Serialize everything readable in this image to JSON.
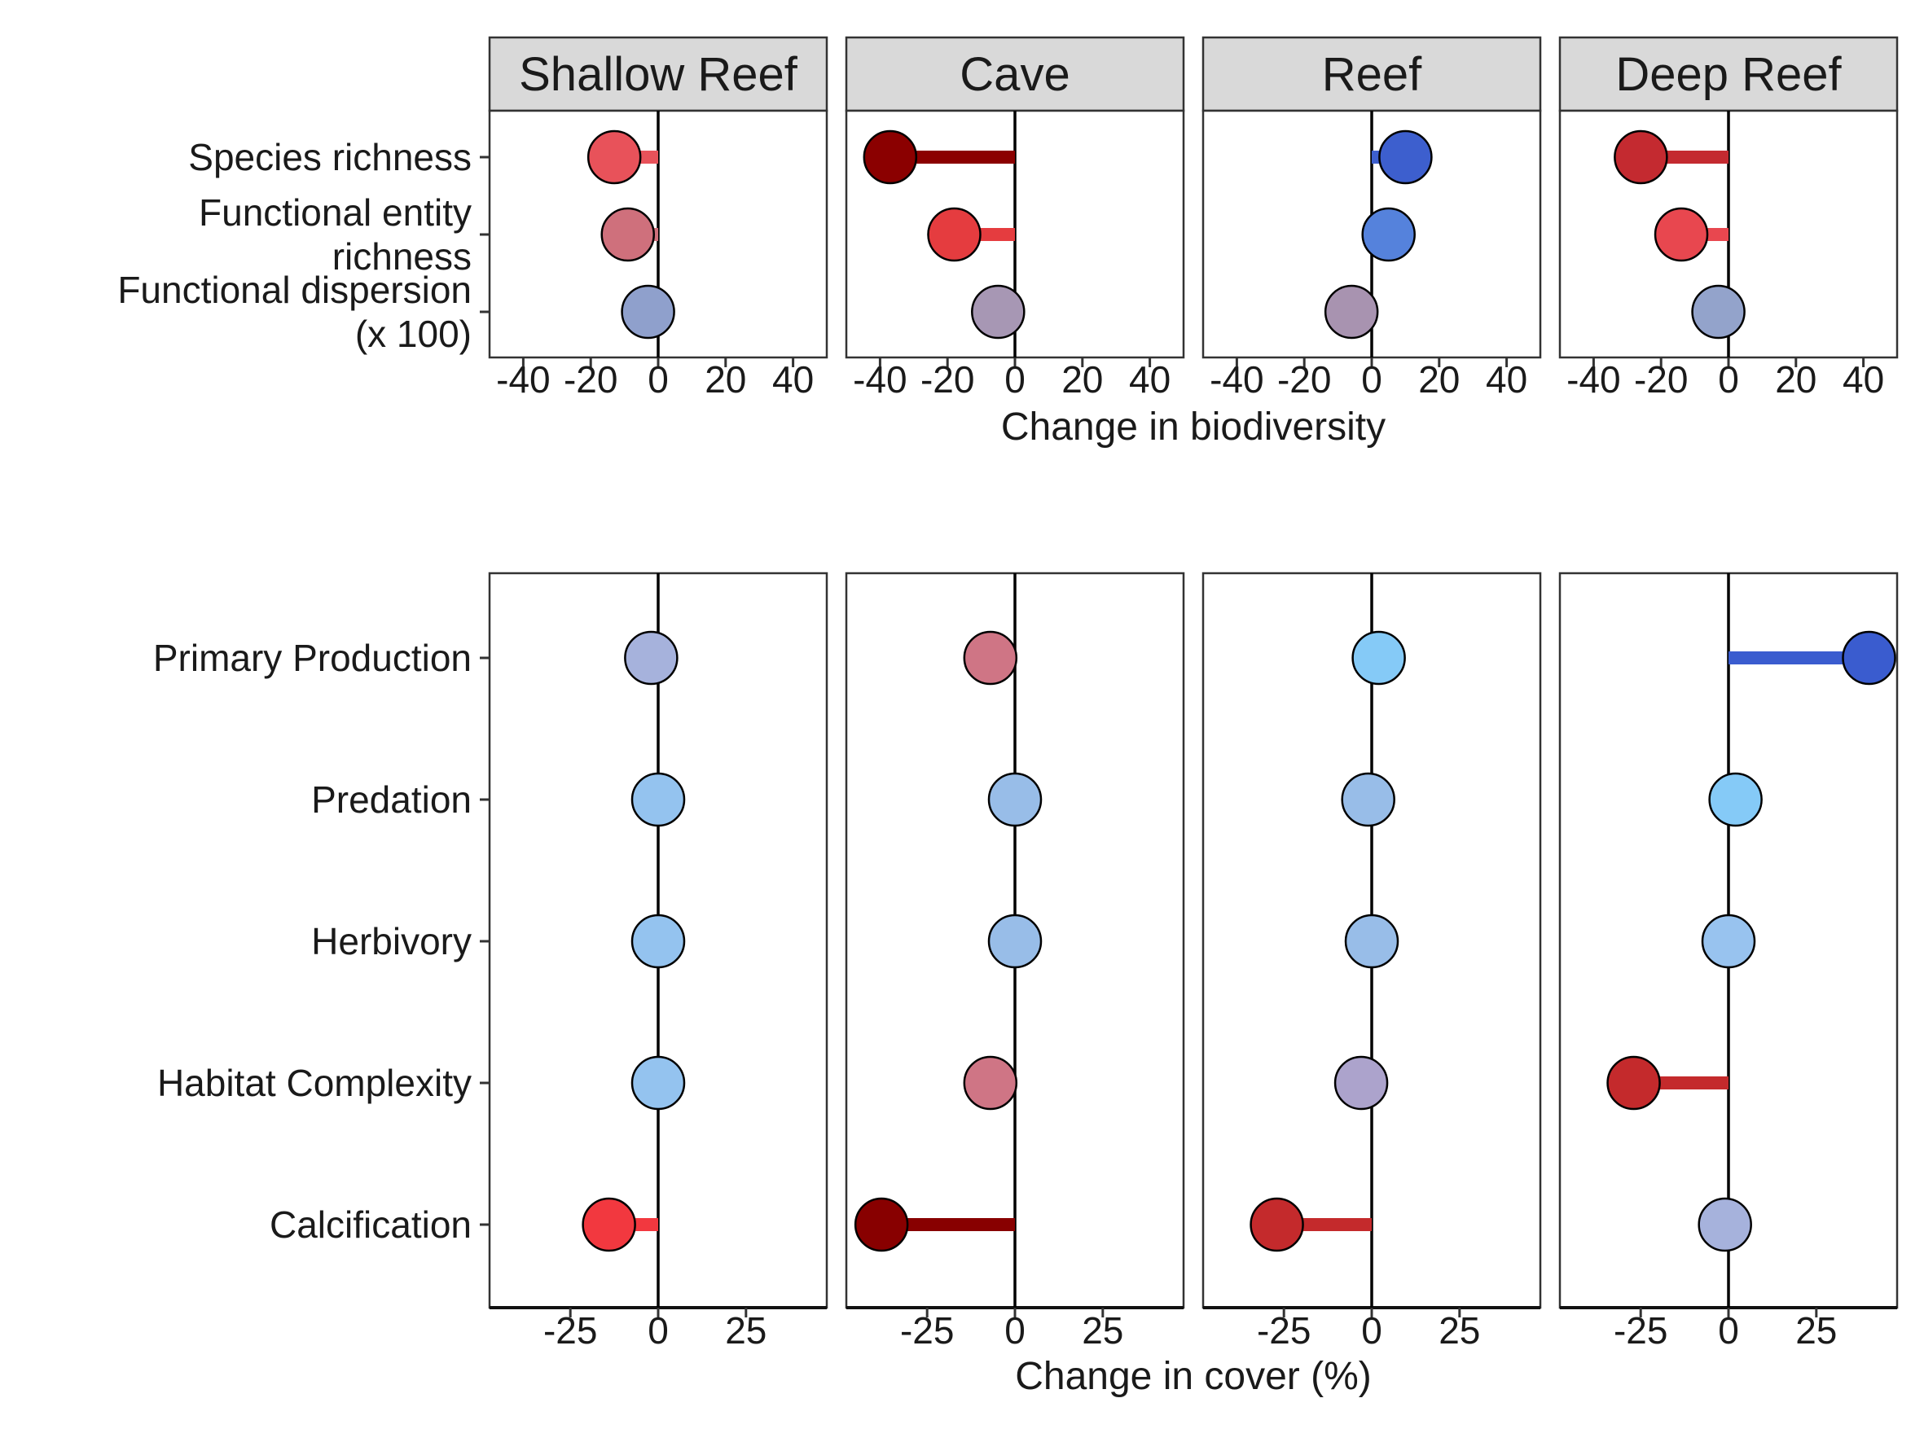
{
  "chart_data": [
    {
      "type": "lollipop",
      "facets": [
        "Shallow Reef",
        "Cave",
        "Reef",
        "Deep Reef"
      ],
      "categories": [
        "Species richness",
        "Functional entity\nrichness",
        "Functional dispersion\n(x 100)"
      ],
      "xlabel": "Change in biodiversity",
      "xlim": [
        -50,
        50
      ],
      "xticks": [
        -40,
        -20,
        0,
        20,
        40
      ],
      "xtick_labels": [
        "-40",
        "-20",
        "0",
        "20",
        "40"
      ],
      "values": {
        "Shallow Reef": [
          -13,
          -9,
          -3
        ],
        "Cave": [
          -37,
          -18,
          -5
        ],
        "Reef": [
          10,
          5,
          -6
        ],
        "Deep Reef": [
          -26,
          -14,
          -3
        ]
      },
      "colors": {
        "Shallow Reef": [
          "#e8525a",
          "#cf707c",
          "#8fa0cc"
        ],
        "Cave": [
          "#8b0000",
          "#e53c3f",
          "#a797b4"
        ],
        "Reef": [
          "#3d5fce",
          "#5582dc",
          "#a893b0"
        ],
        "Deep Reef": [
          "#c42a30",
          "#e8474f",
          "#93a3cb"
        ]
      }
    },
    {
      "type": "lollipop",
      "facets": [
        "Shallow Reef",
        "Cave",
        "Reef",
        "Deep Reef"
      ],
      "categories": [
        "Primary Production",
        "Predation",
        "Herbivory",
        "Habitat Complexity",
        "Calcification"
      ],
      "xlabel": "Change in cover (%)",
      "xlim": [
        -48,
        48
      ],
      "xticks": [
        -25,
        0,
        25
      ],
      "xtick_labels": [
        "-25",
        "0",
        "25"
      ],
      "values": {
        "Shallow Reef": [
          -2,
          0,
          0,
          0,
          -14
        ],
        "Cave": [
          -7,
          0,
          0,
          -7,
          -38
        ],
        "Reef": [
          2,
          -1,
          0,
          -3,
          -27
        ],
        "Deep Reef": [
          40,
          2,
          0,
          -27,
          -1
        ]
      },
      "colors": {
        "Shallow Reef": [
          "#a6b2dc",
          "#94c3ef",
          "#94c3ef",
          "#94c3ef",
          "#f2383f"
        ],
        "Cave": [
          "#cf7585",
          "#98bde8",
          "#98bde8",
          "#cf7585",
          "#880000"
        ],
        "Reef": [
          "#85caf7",
          "#98bde8",
          "#98bde8",
          "#aca3cc",
          "#c42a2c"
        ],
        "Deep Reef": [
          "#3a5ccf",
          "#85caf7",
          "#98c3ef",
          "#c42a2c",
          "#a6b2dc"
        ]
      }
    }
  ]
}
